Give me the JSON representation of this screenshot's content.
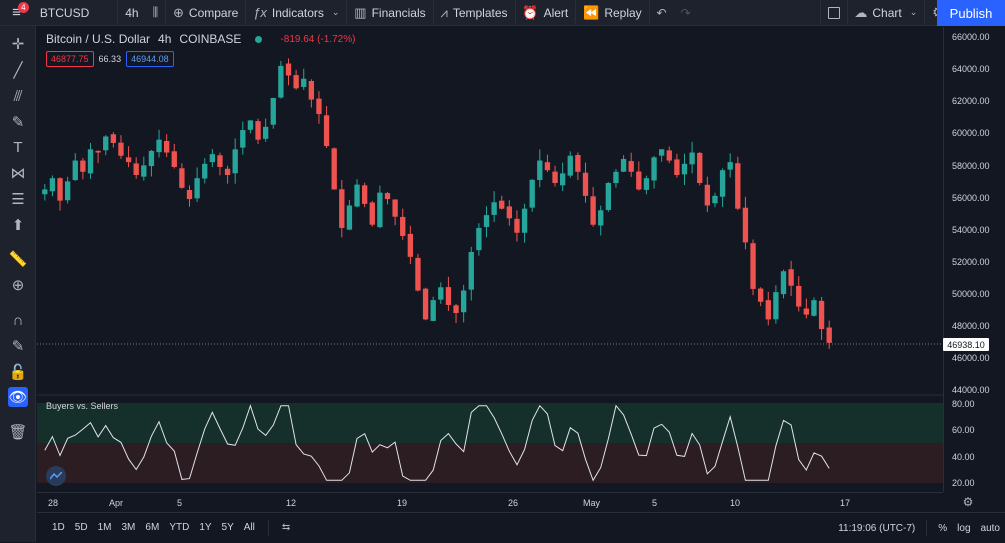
{
  "topbar": {
    "menu_badge": "4",
    "symbol": "BTCUSD",
    "interval": "4h",
    "compare": "Compare",
    "indicators": "Indicators",
    "financials": "Financials",
    "templates": "Templates",
    "alert": "Alert",
    "replay": "Replay",
    "chart": "Chart",
    "publish": "Publish"
  },
  "legend": {
    "title": "Bitcoin / U.S. Dollar",
    "interval": "4h",
    "exchange": "COINBASE",
    "change": "-819.64 (-1.72%)",
    "bid": "46877.75",
    "spread": "66.33",
    "ask": "46944.08"
  },
  "price_axis": {
    "labels": [
      "66000.00",
      "64000.00",
      "62000.00",
      "60000.00",
      "58000.00",
      "56000.00",
      "54000.00",
      "52000.00",
      "50000.00",
      "48000.00",
      "46000.00",
      "44000.00"
    ],
    "current": "46938.10"
  },
  "indicator": {
    "name": "Buyers vs. Sellers",
    "labels": [
      "80.00",
      "60.00",
      "40.00",
      "20.00"
    ]
  },
  "time_axis": [
    "28",
    "Apr",
    "5",
    "12",
    "19",
    "26",
    "May",
    "5",
    "10",
    "17"
  ],
  "bottombar": {
    "ranges": [
      "1D",
      "5D",
      "1M",
      "3M",
      "6M",
      "YTD",
      "1Y",
      "5Y",
      "All"
    ],
    "time": "11:19:06 (UTC-7)",
    "percent": "%",
    "log": "log",
    "auto": "auto"
  },
  "chart_data": {
    "type": "candlestick",
    "title": "Bitcoin / U.S. Dollar",
    "ylim": [
      44000,
      66000
    ],
    "closes": [
      56500,
      57200,
      55800,
      57000,
      58300,
      57600,
      59000,
      58800,
      59800,
      59400,
      58600,
      58200,
      57400,
      58000,
      58900,
      59600,
      58800,
      57900,
      56600,
      55900,
      57200,
      58100,
      58700,
      57900,
      57400,
      59000,
      60200,
      60800,
      59600,
      60400,
      62200,
      64200,
      63600,
      62800,
      63400,
      62100,
      61200,
      59200,
      56500,
      54100,
      55500,
      56800,
      55600,
      54300,
      56300,
      55900,
      54800,
      53600,
      52300,
      50200,
      48400,
      49600,
      50400,
      49300,
      48800,
      50200,
      52600,
      54100,
      54900,
      55700,
      55300,
      54700,
      53800,
      55300,
      57100,
      58300,
      57700,
      56900,
      57500,
      58600,
      57600,
      56100,
      54300,
      55200,
      56900,
      57600,
      58400,
      57600,
      56500,
      57200,
      58500,
      59000,
      58300,
      57400,
      58100,
      58800,
      56900,
      55500,
      56100,
      57700,
      58200,
      55300,
      53200,
      50300,
      49500,
      48400,
      50100,
      51400,
      50500,
      49200,
      48700,
      49600,
      47800,
      46938
    ]
  }
}
